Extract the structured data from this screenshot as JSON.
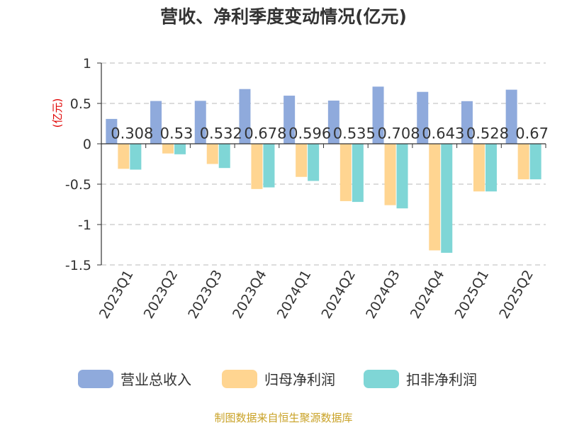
{
  "title": "营收、净利季度变动情况(亿元)",
  "source": "制图数据来自恒生聚源数据库",
  "chart_data": {
    "type": "bar",
    "title": "营收、净利季度变动情况(亿元)",
    "ylabel": "(亿元)",
    "xlabel": "",
    "ylim": [
      -1.5,
      1
    ],
    "yticks": [
      1,
      0.5,
      0,
      -0.5,
      -1,
      -1.5
    ],
    "ytick_labels": [
      "1",
      "0.5",
      "0",
      "-0.5",
      "-1",
      "-1.5"
    ],
    "grid": true,
    "legend_position": "bottom",
    "categories": [
      "2023Q1",
      "2023Q2",
      "2023Q3",
      "2023Q4",
      "2024Q1",
      "2024Q2",
      "2024Q3",
      "2024Q4",
      "2025Q1",
      "2025Q2"
    ],
    "series": [
      {
        "name": "营业总收入",
        "color": "#8faadc",
        "values": [
          0.308,
          0.53,
          0.532,
          0.678,
          0.596,
          0.535,
          0.708,
          0.643,
          0.528,
          0.67
        ],
        "labels": [
          "0.308",
          "0.53",
          "0.532",
          "0.678",
          "0.596",
          "0.535",
          "0.708",
          "0.643",
          "0.528",
          "0.67"
        ]
      },
      {
        "name": "归母净利润",
        "color": "#ffd591",
        "values": [
          -0.31,
          -0.12,
          -0.25,
          -0.56,
          -0.41,
          -0.71,
          -0.76,
          -1.32,
          -0.59,
          -0.44
        ]
      },
      {
        "name": "扣非净利润",
        "color": "#7fd6d6",
        "values": [
          -0.32,
          -0.13,
          -0.3,
          -0.54,
          -0.46,
          -0.72,
          -0.8,
          -1.35,
          -0.59,
          -0.44
        ]
      }
    ]
  }
}
